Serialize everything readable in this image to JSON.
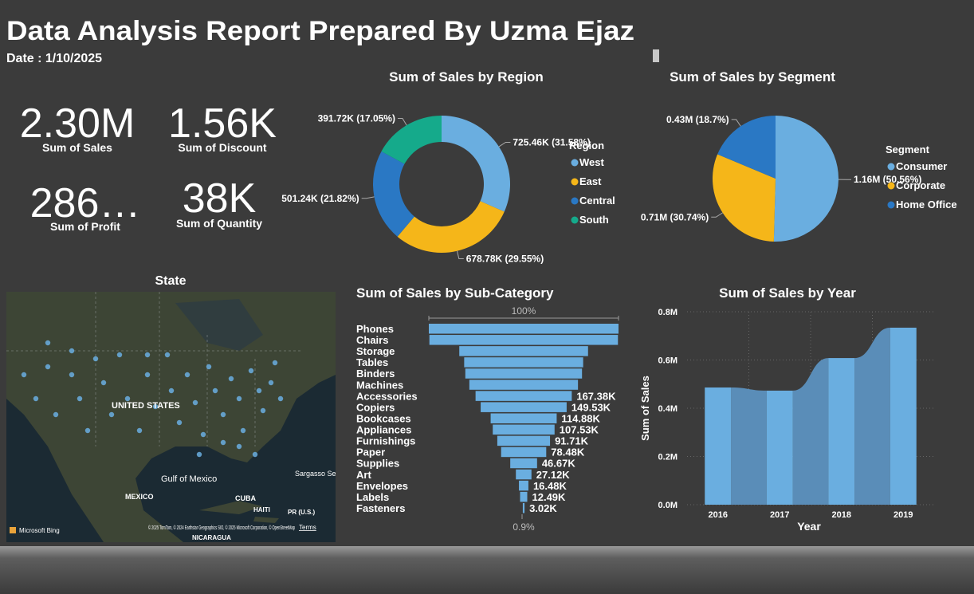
{
  "header": {
    "title": "Data Analysis Report Prepared By Uzma Ejaz",
    "date": "Date : 1/10/2025"
  },
  "cards": [
    {
      "value": "2.30M",
      "label": "Sum of Sales"
    },
    {
      "value": "1.56K",
      "label": "Sum of Discount"
    },
    {
      "value": "286…",
      "label": "Sum of Profit"
    },
    {
      "value": "38K",
      "label": "Sum of Quantity"
    }
  ],
  "map": {
    "title": "State",
    "labels": [
      "UNITED STATES",
      "Gulf of Mexico",
      "MEXICO",
      "CUBA",
      "HAITI",
      "PR (U.S.)",
      "NICARAGUA",
      "Sargasso Sea"
    ],
    "provider": "Microsoft Bing",
    "attribution": "© 2025 TomTom, © 2024 Earthstar Geographics SIO, © 2025 Microsoft Corporation, © OpenStreetMap",
    "terms": "Terms"
  },
  "chart_data": [
    {
      "type": "donut",
      "title": "Sum of Sales by Region",
      "legend_title": "Region",
      "categories": [
        "West",
        "East",
        "Central",
        "South"
      ],
      "values": [
        725460,
        678780,
        501240,
        391720
      ],
      "value_labels": [
        "725.46K (31.58%)",
        "678.78K (29.55%)",
        "501.24K (21.82%)",
        "391.72K (17.05%)"
      ],
      "colors": [
        "#6aaee0",
        "#f5b619",
        "#2a78c4",
        "#15aa8b"
      ]
    },
    {
      "type": "pie",
      "title": "Sum of Sales by Segment",
      "legend_title": "Segment",
      "categories": [
        "Consumer",
        "Corporate",
        "Home Office"
      ],
      "values": [
        1160000,
        710000,
        430000
      ],
      "value_labels": [
        "1.16M (50.56%)",
        "0.71M (30.74%)",
        "0.43M (18.7%)"
      ],
      "colors": [
        "#6aaee0",
        "#f5b619",
        "#2a78c4"
      ]
    },
    {
      "type": "funnel",
      "title": "Sum of Sales by Sub-Category",
      "top_label": "100%",
      "bottom_label": "0.9%",
      "categories": [
        "Phones",
        "Chairs",
        "Storage",
        "Tables",
        "Binders",
        "Machines",
        "Accessories",
        "Copiers",
        "Bookcases",
        "Appliances",
        "Furnishings",
        "Paper",
        "Supplies",
        "Art",
        "Envelopes",
        "Labels",
        "Fasteners"
      ],
      "values": [
        330000,
        328000,
        224000,
        207000,
        203000,
        189000,
        167380,
        149530,
        114880,
        107530,
        91710,
        78480,
        46670,
        27120,
        16480,
        12490,
        3020
      ],
      "value_labels": [
        null,
        null,
        null,
        null,
        null,
        null,
        "167.38K",
        "149.53K",
        "114.88K",
        "107.53K",
        "91.71K",
        "78.48K",
        "46.67K",
        "27.12K",
        "16.48K",
        "12.49K",
        "3.02K"
      ],
      "color": "#6aaee0"
    },
    {
      "type": "ribbon",
      "title": "Sum of Sales by Year",
      "x_label": "Year",
      "y_label": "Sum of Sales",
      "categories": [
        "2016",
        "2017",
        "2018",
        "2019"
      ],
      "values": [
        486000,
        473000,
        608000,
        734000
      ],
      "color": "#6aaee0",
      "ribbon_color": "#5a8db8",
      "ylim": [
        0,
        800000
      ],
      "yticks": [
        {
          "value": 0,
          "label": "0.0M"
        },
        {
          "value": 200000,
          "label": "0.2M"
        },
        {
          "value": 400000,
          "label": "0.4M"
        },
        {
          "value": 600000,
          "label": "0.6M"
        },
        {
          "value": 800000,
          "label": "0.8M"
        }
      ],
      "grid": true
    }
  ]
}
